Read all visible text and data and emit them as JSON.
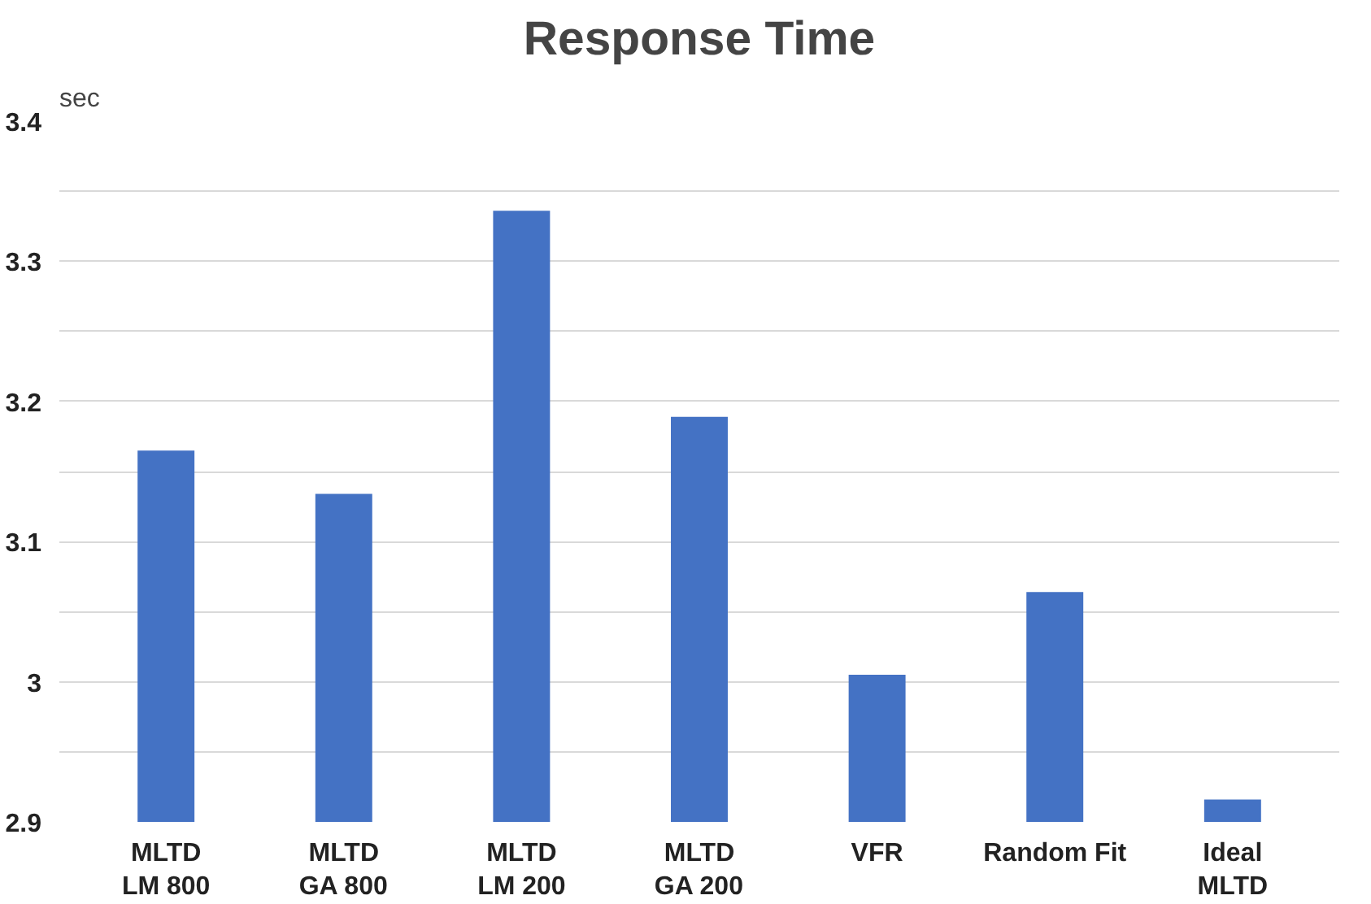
{
  "chart_data": {
    "type": "bar",
    "title": "Response Time",
    "ylabel": "sec",
    "categories": [
      "MLTD\nLM 800",
      "MLTD\nGA 800",
      "MLTD\nLM 200",
      "MLTD\nGA 200",
      "VFR",
      "Random Fit",
      "Ideal\nMLTD"
    ],
    "values": [
      3.165,
      3.134,
      3.336,
      3.189,
      3.005,
      3.064,
      2.916
    ],
    "color": "#4472c4",
    "ylim": [
      2.9,
      3.4
    ],
    "yticks": [
      2.9,
      {
        "value": 2.95,
        "label": null
      },
      3,
      {
        "value": 3.05,
        "label": null
      },
      3.1,
      {
        "value": 3.15,
        "label": null
      },
      3.2,
      {
        "value": 3.25,
        "label": null
      },
      3.3,
      {
        "value": 3.35,
        "label": null
      },
      3.4
    ],
    "grid": "y"
  }
}
